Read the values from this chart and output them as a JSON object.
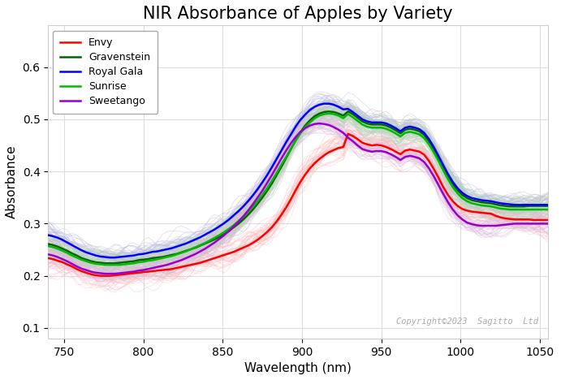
{
  "title": "NIR Absorbance of Apples by Variety",
  "xlabel": "Wavelength (nm)",
  "ylabel": "Absorbance",
  "copyright": "Copyright©2023  Sagitto  Ltd",
  "xlim": [
    740,
    1055
  ],
  "ylim": [
    0.08,
    0.68
  ],
  "yticks": [
    0.1,
    0.2,
    0.3,
    0.4,
    0.5,
    0.6
  ],
  "xticks": [
    750,
    800,
    850,
    900,
    950,
    1000,
    1050
  ],
  "wavelengths": [
    740,
    743,
    746,
    749,
    752,
    755,
    758,
    761,
    764,
    767,
    770,
    773,
    776,
    779,
    782,
    785,
    788,
    791,
    794,
    797,
    800,
    803,
    806,
    809,
    812,
    815,
    818,
    821,
    824,
    827,
    830,
    833,
    836,
    839,
    842,
    845,
    848,
    851,
    854,
    857,
    860,
    863,
    866,
    869,
    872,
    875,
    878,
    881,
    884,
    887,
    890,
    893,
    896,
    899,
    902,
    905,
    908,
    911,
    914,
    917,
    920,
    923,
    926,
    929,
    932,
    935,
    938,
    941,
    944,
    947,
    950,
    953,
    956,
    959,
    962,
    965,
    968,
    971,
    974,
    977,
    980,
    983,
    986,
    989,
    992,
    995,
    998,
    1001,
    1004,
    1007,
    1010,
    1013,
    1016,
    1019,
    1022,
    1025,
    1028,
    1031,
    1034,
    1037,
    1040,
    1043,
    1046,
    1049,
    1052,
    1055
  ],
  "varieties": [
    {
      "name": "Envy",
      "color": "#ff0000",
      "mean_line": [
        0.234,
        0.232,
        0.229,
        0.226,
        0.222,
        0.218,
        0.213,
        0.209,
        0.206,
        0.203,
        0.201,
        0.2,
        0.2,
        0.2,
        0.201,
        0.202,
        0.203,
        0.204,
        0.205,
        0.206,
        0.207,
        0.208,
        0.209,
        0.21,
        0.211,
        0.212,
        0.213,
        0.215,
        0.217,
        0.219,
        0.221,
        0.223,
        0.225,
        0.228,
        0.231,
        0.234,
        0.237,
        0.24,
        0.243,
        0.246,
        0.25,
        0.254,
        0.258,
        0.263,
        0.269,
        0.276,
        0.284,
        0.293,
        0.304,
        0.317,
        0.331,
        0.347,
        0.364,
        0.38,
        0.394,
        0.406,
        0.416,
        0.424,
        0.431,
        0.437,
        0.441,
        0.445,
        0.447,
        0.472,
        0.468,
        0.462,
        0.455,
        0.452,
        0.45,
        0.451,
        0.45,
        0.447,
        0.443,
        0.438,
        0.433,
        0.44,
        0.442,
        0.44,
        0.438,
        0.432,
        0.42,
        0.405,
        0.388,
        0.37,
        0.355,
        0.343,
        0.334,
        0.328,
        0.325,
        0.323,
        0.322,
        0.321,
        0.32,
        0.319,
        0.315,
        0.312,
        0.31,
        0.309,
        0.308,
        0.308,
        0.308,
        0.308,
        0.307,
        0.307,
        0.307,
        0.307
      ],
      "spread": 0.03,
      "n_samples": 35,
      "individual_color": "#ffbbbb"
    },
    {
      "name": "Gravenstein",
      "color": "#006400",
      "mean_line": [
        0.261,
        0.259,
        0.256,
        0.252,
        0.248,
        0.243,
        0.239,
        0.234,
        0.231,
        0.228,
        0.226,
        0.225,
        0.224,
        0.224,
        0.224,
        0.225,
        0.226,
        0.227,
        0.228,
        0.23,
        0.231,
        0.232,
        0.234,
        0.235,
        0.236,
        0.238,
        0.24,
        0.242,
        0.245,
        0.248,
        0.251,
        0.254,
        0.258,
        0.262,
        0.266,
        0.27,
        0.275,
        0.28,
        0.286,
        0.293,
        0.3,
        0.308,
        0.317,
        0.327,
        0.338,
        0.35,
        0.363,
        0.377,
        0.393,
        0.409,
        0.426,
        0.443,
        0.46,
        0.475,
        0.488,
        0.498,
        0.506,
        0.511,
        0.514,
        0.515,
        0.514,
        0.511,
        0.507,
        0.515,
        0.51,
        0.503,
        0.496,
        0.492,
        0.49,
        0.49,
        0.49,
        0.488,
        0.484,
        0.479,
        0.473,
        0.48,
        0.482,
        0.48,
        0.477,
        0.47,
        0.458,
        0.443,
        0.426,
        0.408,
        0.391,
        0.376,
        0.364,
        0.355,
        0.349,
        0.345,
        0.343,
        0.341,
        0.34,
        0.339,
        0.337,
        0.335,
        0.334,
        0.333,
        0.333,
        0.333,
        0.333,
        0.334,
        0.334,
        0.334,
        0.334,
        0.334
      ],
      "spread": 0.025,
      "n_samples": 35,
      "individual_color": "#bbbbbb"
    },
    {
      "name": "Royal Gala",
      "color": "#0000ff",
      "mean_line": [
        0.278,
        0.276,
        0.273,
        0.269,
        0.264,
        0.259,
        0.254,
        0.249,
        0.245,
        0.242,
        0.239,
        0.237,
        0.236,
        0.235,
        0.235,
        0.236,
        0.237,
        0.238,
        0.239,
        0.241,
        0.242,
        0.244,
        0.246,
        0.247,
        0.249,
        0.251,
        0.253,
        0.256,
        0.259,
        0.262,
        0.266,
        0.27,
        0.274,
        0.279,
        0.284,
        0.289,
        0.295,
        0.301,
        0.308,
        0.316,
        0.324,
        0.333,
        0.343,
        0.354,
        0.366,
        0.379,
        0.393,
        0.408,
        0.424,
        0.44,
        0.456,
        0.471,
        0.486,
        0.499,
        0.509,
        0.518,
        0.524,
        0.528,
        0.53,
        0.53,
        0.528,
        0.524,
        0.519,
        0.52,
        0.514,
        0.507,
        0.5,
        0.496,
        0.494,
        0.494,
        0.494,
        0.492,
        0.488,
        0.483,
        0.477,
        0.484,
        0.486,
        0.484,
        0.481,
        0.474,
        0.462,
        0.447,
        0.43,
        0.412,
        0.395,
        0.38,
        0.368,
        0.359,
        0.353,
        0.349,
        0.347,
        0.345,
        0.344,
        0.343,
        0.341,
        0.339,
        0.338,
        0.337,
        0.336,
        0.336,
        0.336,
        0.336,
        0.336,
        0.336,
        0.336,
        0.336
      ],
      "spread": 0.025,
      "n_samples": 35,
      "individual_color": "#bbbbdd"
    },
    {
      "name": "Sunrise",
      "color": "#00bb00",
      "mean_line": [
        0.257,
        0.255,
        0.252,
        0.248,
        0.244,
        0.239,
        0.235,
        0.231,
        0.228,
        0.225,
        0.223,
        0.222,
        0.221,
        0.221,
        0.221,
        0.221,
        0.222,
        0.223,
        0.224,
        0.226,
        0.227,
        0.229,
        0.23,
        0.232,
        0.234,
        0.236,
        0.238,
        0.241,
        0.244,
        0.247,
        0.251,
        0.255,
        0.259,
        0.263,
        0.268,
        0.273,
        0.278,
        0.284,
        0.29,
        0.297,
        0.305,
        0.313,
        0.322,
        0.332,
        0.343,
        0.355,
        0.368,
        0.382,
        0.397,
        0.413,
        0.428,
        0.444,
        0.459,
        0.473,
        0.485,
        0.494,
        0.502,
        0.507,
        0.51,
        0.511,
        0.51,
        0.507,
        0.502,
        0.51,
        0.504,
        0.497,
        0.49,
        0.486,
        0.484,
        0.484,
        0.484,
        0.482,
        0.478,
        0.473,
        0.467,
        0.474,
        0.476,
        0.474,
        0.471,
        0.464,
        0.452,
        0.437,
        0.42,
        0.402,
        0.385,
        0.37,
        0.358,
        0.349,
        0.343,
        0.339,
        0.337,
        0.335,
        0.334,
        0.333,
        0.331,
        0.329,
        0.328,
        0.327,
        0.327,
        0.327,
        0.327,
        0.327,
        0.327,
        0.327,
        0.327,
        0.327
      ],
      "spread": 0.025,
      "n_samples": 35,
      "individual_color": "#bbddbb"
    },
    {
      "name": "Sweetango",
      "color": "#9900cc",
      "mean_line": [
        0.241,
        0.239,
        0.236,
        0.232,
        0.228,
        0.223,
        0.218,
        0.214,
        0.211,
        0.208,
        0.206,
        0.205,
        0.204,
        0.204,
        0.204,
        0.205,
        0.206,
        0.207,
        0.208,
        0.21,
        0.211,
        0.213,
        0.215,
        0.217,
        0.219,
        0.221,
        0.224,
        0.227,
        0.23,
        0.234,
        0.238,
        0.242,
        0.247,
        0.252,
        0.258,
        0.264,
        0.271,
        0.278,
        0.286,
        0.295,
        0.304,
        0.314,
        0.325,
        0.337,
        0.35,
        0.363,
        0.378,
        0.393,
        0.409,
        0.425,
        0.44,
        0.454,
        0.466,
        0.476,
        0.483,
        0.488,
        0.491,
        0.492,
        0.491,
        0.489,
        0.485,
        0.48,
        0.474,
        0.465,
        0.458,
        0.45,
        0.443,
        0.44,
        0.438,
        0.439,
        0.439,
        0.437,
        0.433,
        0.428,
        0.422,
        0.428,
        0.43,
        0.428,
        0.425,
        0.418,
        0.406,
        0.391,
        0.374,
        0.357,
        0.341,
        0.327,
        0.316,
        0.308,
        0.302,
        0.299,
        0.297,
        0.296,
        0.296,
        0.296,
        0.296,
        0.297,
        0.298,
        0.299,
        0.3,
        0.3,
        0.3,
        0.3,
        0.3,
        0.3,
        0.3,
        0.3
      ],
      "spread": 0.025,
      "n_samples": 35,
      "individual_color": "#ddbbdd"
    }
  ],
  "background_color": "#ffffff",
  "grid_color": "#dddddd",
  "title_fontsize": 15,
  "label_fontsize": 11,
  "tick_fontsize": 10
}
